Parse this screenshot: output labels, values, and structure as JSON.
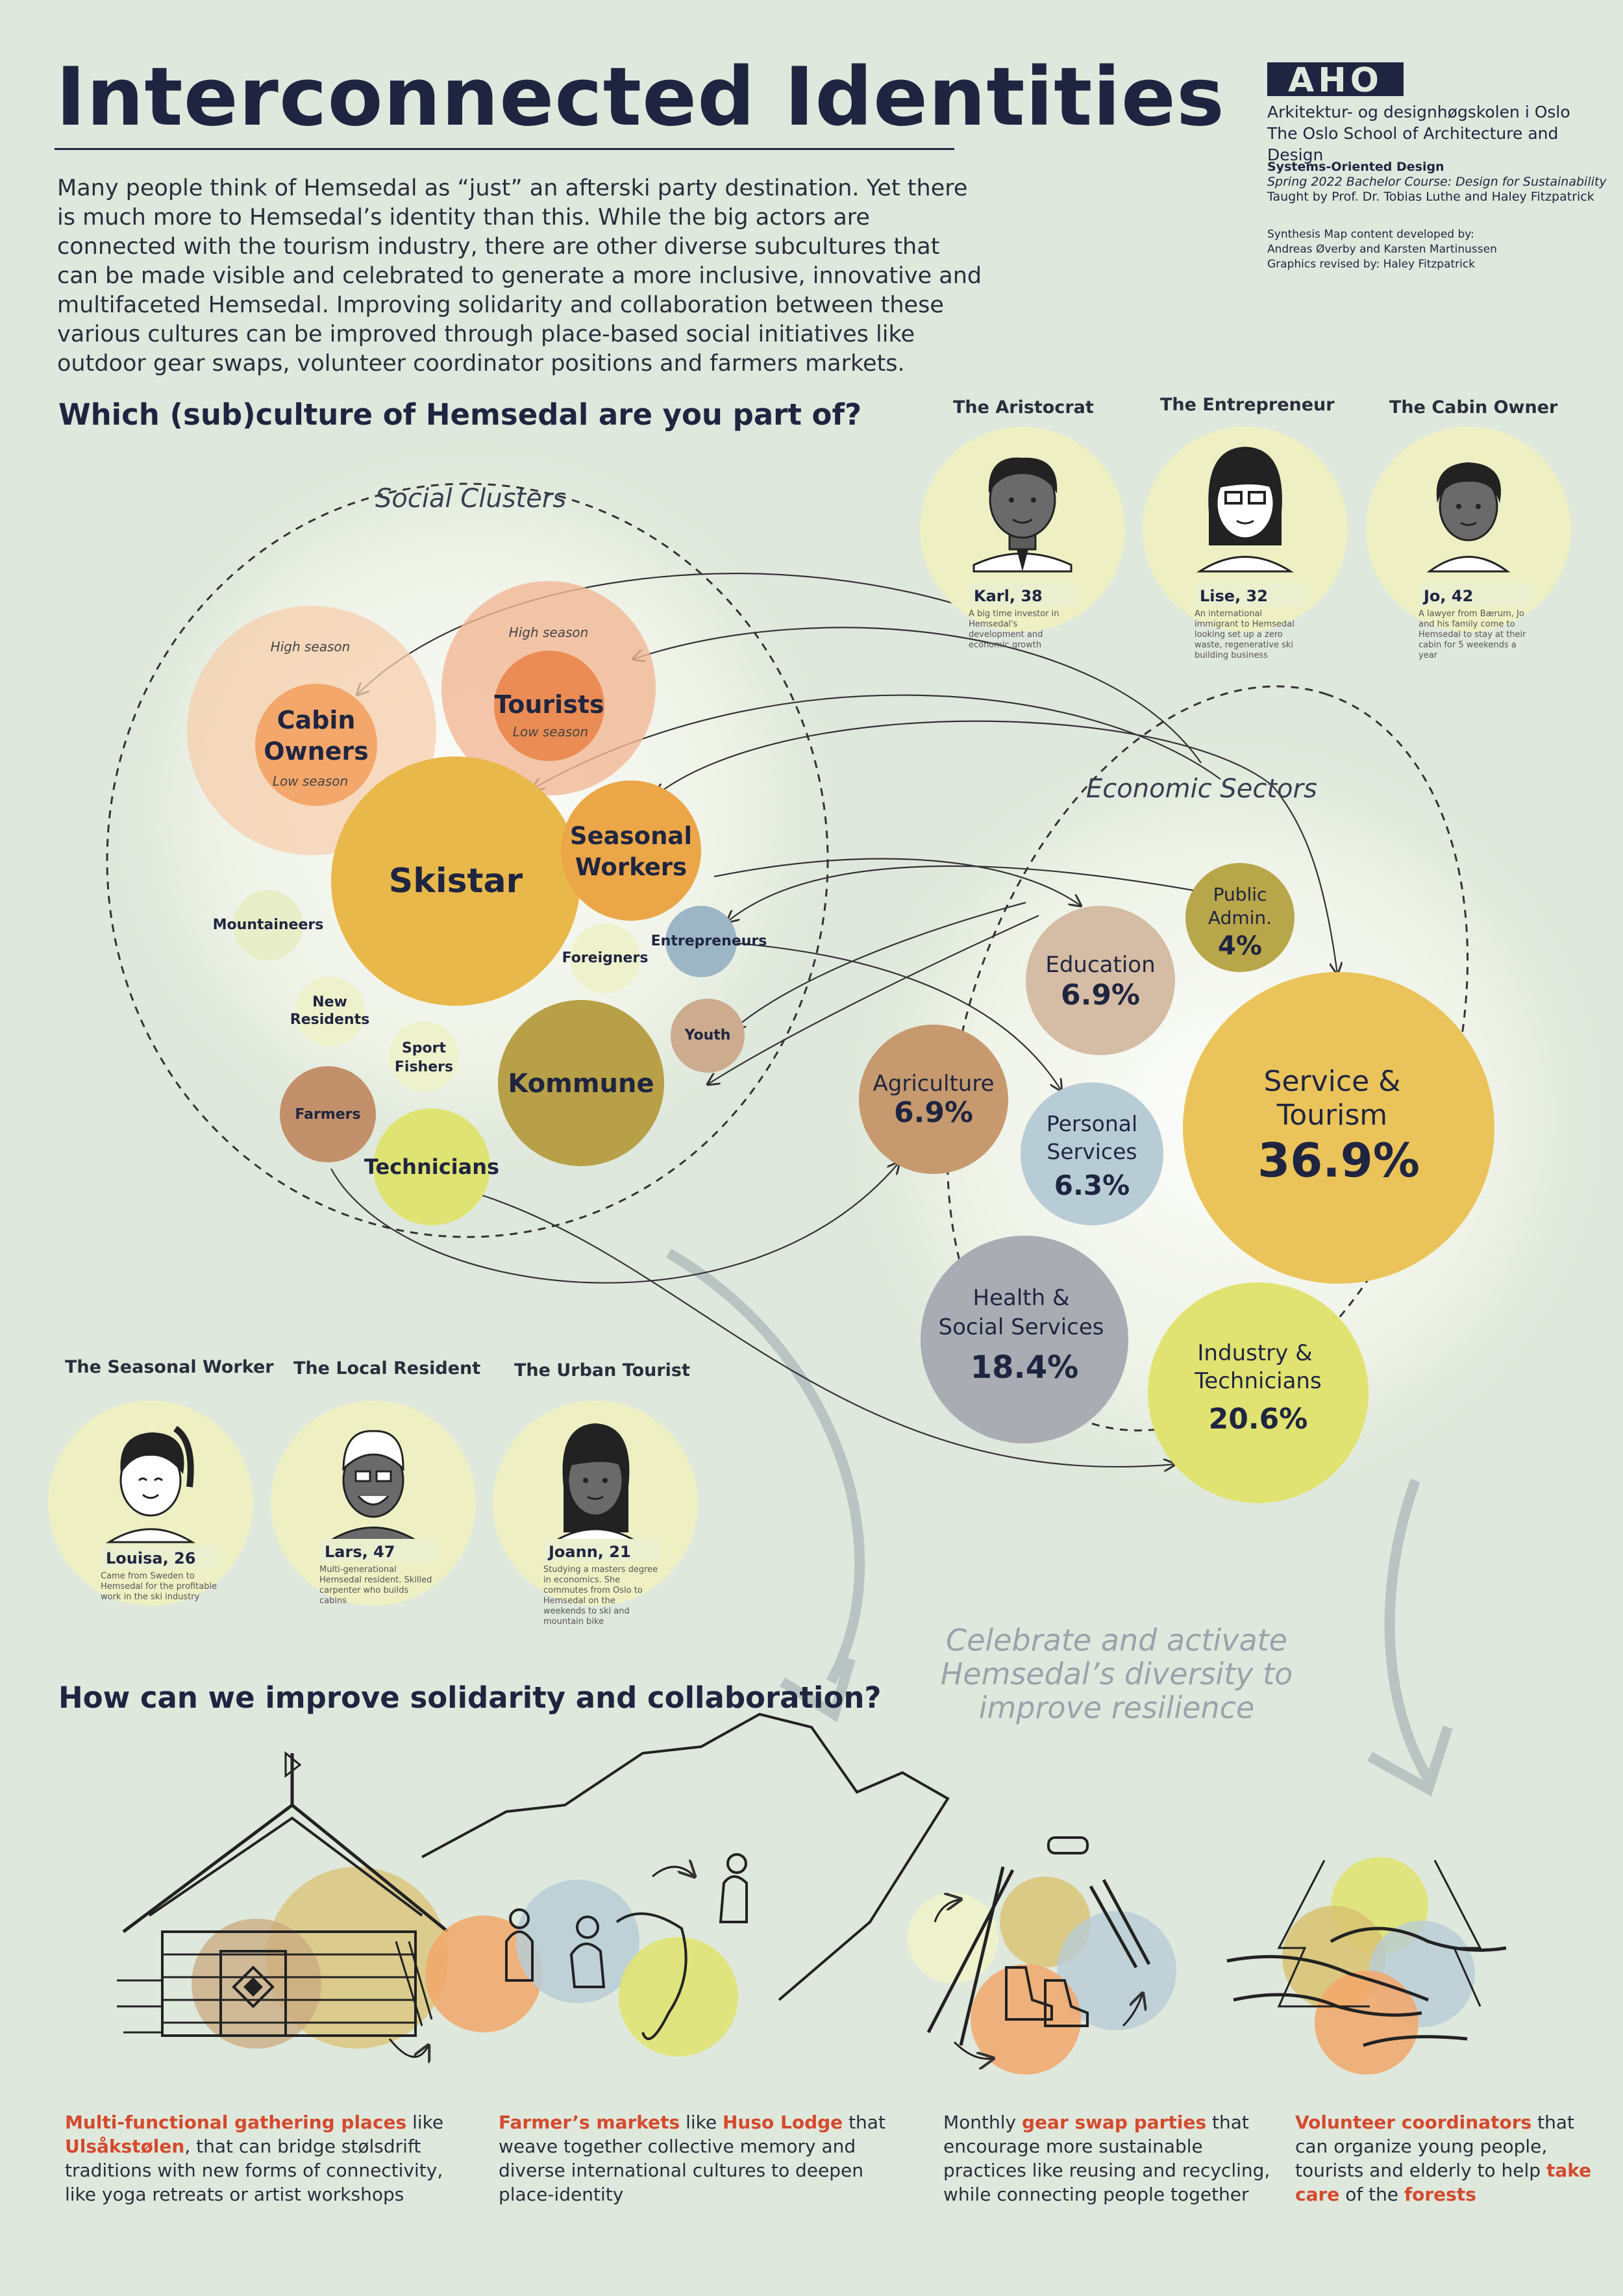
{
  "header": {
    "title": "Interconnected Identities",
    "intro": "Many people think of Hemsedal as “just” an afterski party destination. Yet there is much more to Hemsedal’s identity than this. While the big actors are connected with the tourism industry, there are other diverse subcultures that can be made visible and celebrated to generate a more inclusive, innovative and multifaceted Hemsedal. Improving solidarity and collaboration between these various cultures can be improved through place-based social initiatives like outdoor gear swaps, volunteer coordinator positions and farmers markets."
  },
  "institution": {
    "logo": "AHO",
    "name_no": "Arkitektur- og designhøgskolen i Oslo",
    "name_en": "The Oslo School of Architecture and Design",
    "course_title": "Systems-Oriented Design",
    "course_line": "Spring 2022 Bachelor Course: Design for Sustainability",
    "taught_by": "Taught by Prof. Dr. Tobias Luthe and Haley Fitzpatrick",
    "credits_1": "Synthesis Map content developed by:",
    "credits_2": "Andreas Øverby and Karsten Martinussen",
    "credits_3": "Graphics revised by: Haley Fitzpatrick"
  },
  "questions": {
    "q1": "Which (sub)culture of Hemsedal are you part of?",
    "q2": "How can we improve solidarity and collaboration?"
  },
  "personas_top": [
    {
      "role": "The Aristocrat",
      "name": "Karl, 38",
      "desc": "A big time investor in Hemsedal's development and economic growth"
    },
    {
      "role": "The Entrepreneur",
      "name": "Lise, 32",
      "desc": "An international immigrant to Hemsedal looking set up a zero waste, regenerative ski building business"
    },
    {
      "role": "The Cabin Owner",
      "name": "Jo, 42",
      "desc": "A lawyer from Bærum, Jo and his family come to Hemsedal to stay at their cabin for 5 weekends a year"
    }
  ],
  "personas_bottom": [
    {
      "role": "The Seasonal Worker",
      "name": "Louisa, 26",
      "desc": "Came from Sweden to Hemsedal for the profitable work in the ski industry"
    },
    {
      "role": "The Local Resident",
      "name": "Lars, 47",
      "desc": "Multi-generational Hemsedal resident. Skilled carpenter who builds cabins"
    },
    {
      "role": "The Urban Tourist",
      "name": "Joann, 21",
      "desc": "Studying a masters degree in economics. She commutes from Oslo to Hemsedal on the weekends to ski and mountain bike"
    }
  ],
  "social_clusters": {
    "label": "Social Clusters",
    "high_season": "High season",
    "low_season": "Low season",
    "nodes": [
      {
        "label": "Cabin Owners",
        "color": "#f3a76a"
      },
      {
        "label": "Tourists",
        "color": "#ea8c54"
      },
      {
        "label": "Skistar",
        "color": "#e9b84a"
      },
      {
        "label": "Seasonal Workers",
        "color": "#eba647"
      },
      {
        "label": "Mountaineers",
        "color": "#e8efc8"
      },
      {
        "label": "Entrepreneurs",
        "color": "#9db6c6"
      },
      {
        "label": "Foreigners",
        "color": "#eef2cc"
      },
      {
        "label": "New Residents",
        "color": "#eef2cc"
      },
      {
        "label": "Sport Fishers",
        "color": "#eef2cc"
      },
      {
        "label": "Youth",
        "color": "#ccab8e"
      },
      {
        "label": "Kommune",
        "color": "#b8a048"
      },
      {
        "label": "Farmers",
        "color": "#c2906a"
      },
      {
        "label": "Technicians",
        "color": "#dfe373"
      }
    ]
  },
  "economic_sectors": {
    "label": "Economic Sectors",
    "nodes": [
      {
        "label": "Public Admin.",
        "value": "4%",
        "color": "#b8a64a"
      },
      {
        "label": "Education",
        "value": "6.9%",
        "color": "#d5bca4"
      },
      {
        "label": "Agriculture",
        "value": "6.9%",
        "color": "#c69a6e"
      },
      {
        "label": "Personal Services",
        "value": "6.3%",
        "color": "#b8ccd6"
      },
      {
        "label": "Service & Tourism",
        "value": "36.9%",
        "color": "#eac45a"
      },
      {
        "label": "Health & Social Services",
        "value": "18.4%",
        "color": "#a9acb2"
      },
      {
        "label": "Industry & Technicians",
        "value": "20.6%",
        "color": "#e0e371"
      }
    ]
  },
  "celebrate": "Celebrate and activate Hemsedal’s diversity to improve resilience",
  "initiatives": [
    {
      "r1": "Multi-functional gathering places",
      "t1": " like ",
      "r2": "Ulsåkstølen",
      "t2": ",  that can bridge stølsdrift traditions with new forms of connectivity, like yoga retreats or artist workshops"
    },
    {
      "r1": "Farmer’s markets",
      "t1": " like ",
      "r2": "Huso Lodge",
      "t2": " that weave together collective memory and diverse international cultures to deepen place-identity"
    },
    {
      "t0": "Monthly ",
      "r1": "gear swap parties",
      "t1": " that encourage more sustainable practices like reusing and recycling, while connecting people together"
    },
    {
      "r1": "Volunteer coordinators",
      "t1": " that can organize young people, tourists and elderly to help ",
      "r2": "take care",
      "t2": " of the ",
      "r3": "forests"
    }
  ]
}
